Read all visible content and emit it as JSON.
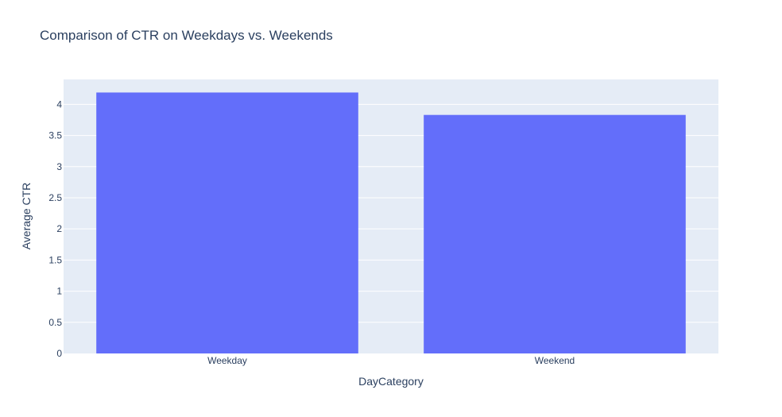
{
  "chart_data": {
    "type": "bar",
    "title": "Comparison of CTR on Weekdays vs. Weekends",
    "xlabel": "DayCategory",
    "ylabel": "Average CTR",
    "categories": [
      "Weekday",
      "Weekend"
    ],
    "values": [
      4.19,
      3.83
    ],
    "ylim": [
      0,
      4.4
    ],
    "yticks": [
      0,
      0.5,
      1,
      1.5,
      2,
      2.5,
      3,
      3.5,
      4
    ],
    "grid": true,
    "colors": {
      "bar": "#636efa",
      "plot_background": "#e5ecf6",
      "grid": "#ffffff",
      "text": "#2a3f5f"
    }
  }
}
